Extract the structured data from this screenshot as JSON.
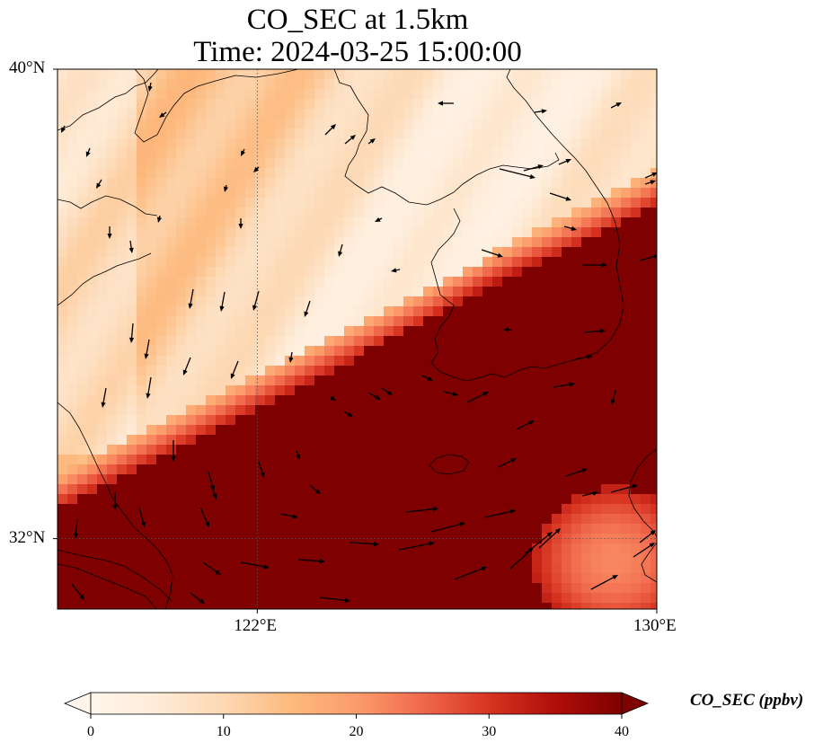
{
  "title": {
    "line1": "CO_SEC at 1.5km",
    "line2": "Time: 2024-03-25 15:00:00"
  },
  "map": {
    "extent": {
      "lon_min": 118,
      "lon_max": 130,
      "lat_min": 30.8,
      "lat_max": 40
    },
    "lat_ticks": [
      {
        "value": 40,
        "label": "40°N"
      },
      {
        "value": 32,
        "label": "32°N"
      }
    ],
    "lon_ticks": [
      {
        "value": 122,
        "label": "122°E"
      },
      {
        "value": 130,
        "label": "130°E"
      }
    ],
    "gridlines": {
      "lons": [
        122
      ],
      "lats": [
        32
      ]
    },
    "colors": {
      "low": "#fff5eb",
      "mid": "#fdae6b",
      "high": "#7f0000",
      "coast": "#000000"
    }
  },
  "colorbar": {
    "label": "CO_SEC (ppbv)",
    "min": 0,
    "max": 40,
    "ticks": [
      {
        "value": 0,
        "label": "0"
      },
      {
        "value": 10,
        "label": "10"
      },
      {
        "value": 20,
        "label": "20"
      },
      {
        "value": 30,
        "label": "30"
      },
      {
        "value": 40,
        "label": "40"
      }
    ],
    "extend": "both"
  }
}
